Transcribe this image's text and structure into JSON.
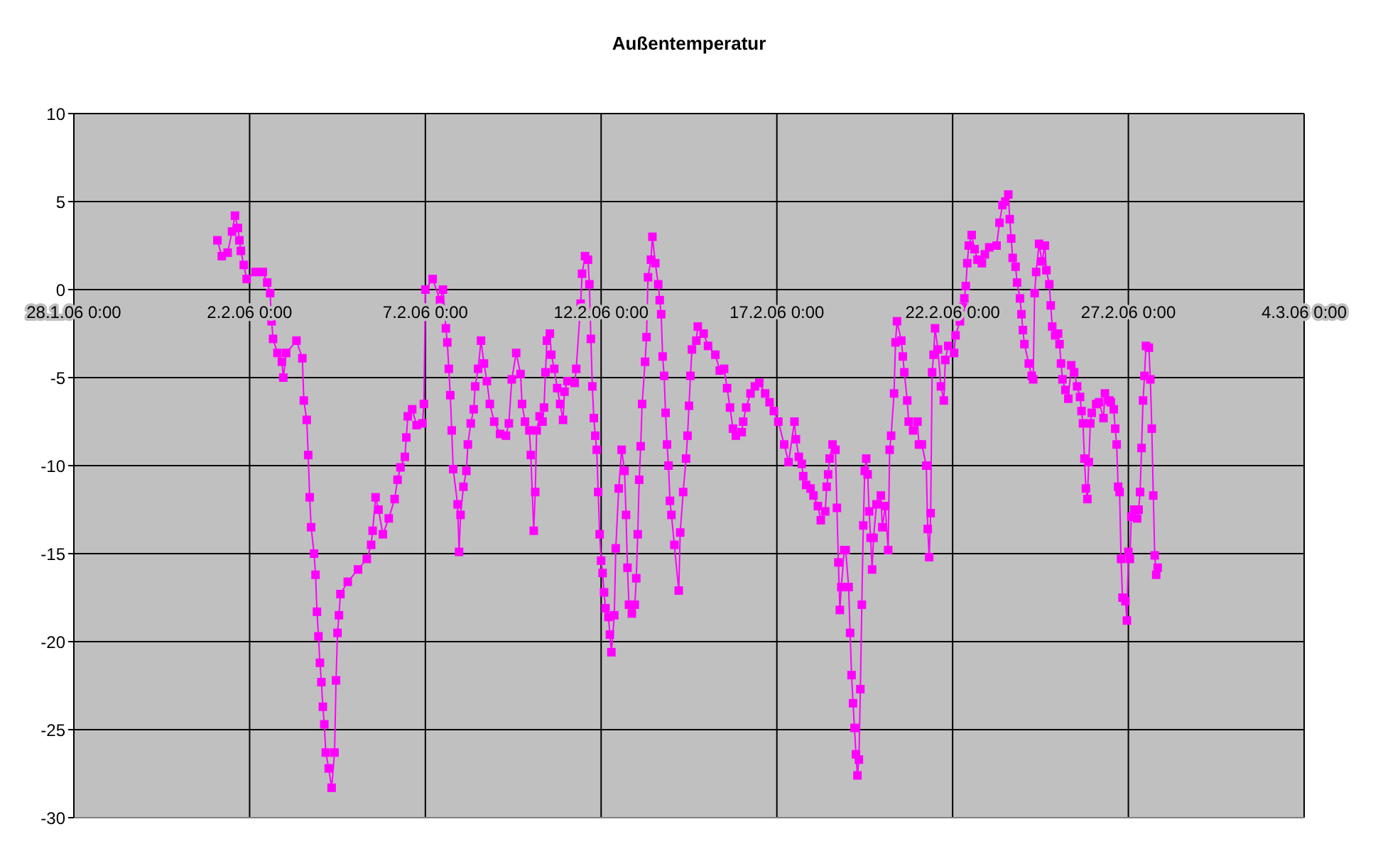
{
  "chart_data": {
    "type": "line",
    "title": "Außentemperatur",
    "x": [
      "--02-01T02:00",
      "--02-01T05:00",
      "--02-01T09:00",
      "--02-01T12:00",
      "--02-01T14:00",
      "--02-01T16:00",
      "--02-01T17:00",
      "--02-01T18:00",
      "--02-01T20:00",
      "--02-01T22:00",
      "--02-02T04:00",
      "--02-02T09:00",
      "--02-02T12:00",
      "--02-02T14:00",
      "--02-02T15:00",
      "--02-02T16:00",
      "--02-02T19:00",
      "--02-02T22:00",
      "--02-02T23:00",
      "--02-03T01:00",
      "--02-03T08:00",
      "--02-03T12:00",
      "--02-03T13:00",
      "--02-03T15:00",
      "--02-03T16:00",
      "--02-03T17:00",
      "--02-03T18:00",
      "--02-03T20:00",
      "--02-03T21:00",
      "--02-03T22:00",
      "--02-03T23:00",
      "--02-04T00:00",
      "--02-04T01:00",
      "--02-04T02:00",
      "--02-04T03:00",
      "--02-04T04:00",
      "--02-04T06:00",
      "--02-04T08:00",
      "--02-04T10:00",
      "--02-04T11:00",
      "--02-04T12:00",
      "--02-04T13:00",
      "--02-04T14:00",
      "--02-04T19:00",
      "--02-05T02:00",
      "--02-05T08:00",
      "--02-05T11:00",
      "--02-05T12:00",
      "--02-05T14:00",
      "--02-05T16:00",
      "--02-05T19:00",
      "--02-05T23:00",
      "--02-06T03:00",
      "--02-06T05:00",
      "--02-06T07:00",
      "--02-06T10:00",
      "--02-06T11:00",
      "--02-06T12:00",
      "--02-06T15:00",
      "--02-06T18:00",
      "--02-06T22:00",
      "--02-06T23:00",
      "--02-07T00:00",
      "--02-07T05:00",
      "--02-07T10:00",
      "--02-07T12:00",
      "--02-07T14:00",
      "--02-07T15:00",
      "--02-07T16:00",
      "--02-07T17:00",
      "--02-07T18:00",
      "--02-07T19:00",
      "--02-07T22:00",
      "--02-07T23:00",
      "--02-08T00:00",
      "--02-08T02:00",
      "--02-08T04:00",
      "--02-08T05:00",
      "--02-08T07:00",
      "--02-08T09:00",
      "--02-08T10:00",
      "--02-08T12:00",
      "--02-08T14:00",
      "--02-08T16:00",
      "--02-08T18:00",
      "--02-08T20:00",
      "--02-08T23:00",
      "--02-09T03:00",
      "--02-09T07:00",
      "--02-09T09:00",
      "--02-09T11:00",
      "--02-09T14:00",
      "--02-09T17:00",
      "--02-09T18:00",
      "--02-09T20:00",
      "--02-09T23:00",
      "--02-10T00:00",
      "--02-10T02:00",
      "--02-10T03:00",
      "--02-10T04:00",
      "--02-10T06:00",
      "--02-10T08:00",
      "--02-10T09:00",
      "--02-10T10:00",
      "--02-10T11:00",
      "--02-10T13:00",
      "--02-10T14:00",
      "--02-10T16:00",
      "--02-10T18:00",
      "--02-10T20:00",
      "--02-10T22:00",
      "--02-10T23:00",
      "--02-11T01:00",
      "--02-11T06:00",
      "--02-11T07:00",
      "--02-11T10:00",
      "--02-11T11:00",
      "--02-11T13:00",
      "--02-11T15:00",
      "--02-11T16:00",
      "--02-11T17:00",
      "--02-11T18:00",
      "--02-11T19:00",
      "--02-11T20:00",
      "--02-11T21:00",
      "--02-11T22:00",
      "--02-11T23:00",
      "--02-12T00:00",
      "--02-12T01:00",
      "--02-12T02:00",
      "--02-12T03:00",
      "--02-12T05:00",
      "--02-12T06:00",
      "--02-12T07:00",
      "--02-12T09:00",
      "--02-12T10:00",
      "--02-12T12:00",
      "--02-12T14:00",
      "--02-12T16:00",
      "--02-12T17:00",
      "--02-12T18:00",
      "--02-12T19:00",
      "--02-12T21:00",
      "--02-12T23:00",
      "--02-13T00:00",
      "--02-13T01:00",
      "--02-13T02:00",
      "--02-13T03:00",
      "--02-13T04:00",
      "--02-13T06:00",
      "--02-13T07:00",
      "--02-13T08:00",
      "--02-13T10:00",
      "--02-13T11:00",
      "--02-13T13:00",
      "--02-13T15:00",
      "--02-13T16:00",
      "--02-13T17:00",
      "--02-13T18:00",
      "--02-13T19:00",
      "--02-13T20:00",
      "--02-13T21:00",
      "--02-13T22:00",
      "--02-13T23:00",
      "--02-14T00:00",
      "--02-14T02:00",
      "--02-14T05:00",
      "--02-14T06:00",
      "--02-14T08:00",
      "--02-14T10:00",
      "--02-14T11:00",
      "--02-14T12:00",
      "--02-14T13:00",
      "--02-14T14:00",
      "--02-14T17:00",
      "--02-14T18:00",
      "--02-14T22:00",
      "--02-15T01:00",
      "--02-15T06:00",
      "--02-15T09:00",
      "--02-15T12:00",
      "--02-15T14:00",
      "--02-15T16:00",
      "--02-15T18:00",
      "--02-15T20:00",
      "--02-16T00:00",
      "--02-16T01:00",
      "--02-16T03:00",
      "--02-16T06:00",
      "--02-16T09:00",
      "--02-16T12:00",
      "--02-16T16:00",
      "--02-16T19:00",
      "--02-16T22:00",
      "--02-17T01:00",
      "--02-17T05:00",
      "--02-17T08:00",
      "--02-17T12:00",
      "--02-17T13:00",
      "--02-17T15:00",
      "--02-17T17:00",
      "--02-17T18:00",
      "--02-17T20:00",
      "--02-17T23:00",
      "--02-18T01:00",
      "--02-18T04:00",
      "--02-18T06:00",
      "--02-18T09:00",
      "--02-18T10:00",
      "--02-18T11:00",
      "--02-18T12:00",
      "--02-18T14:00",
      "--02-18T16:00",
      "--02-18T17:00",
      "--02-18T18:00",
      "--02-18T19:00",
      "--02-18T20:00",
      "--02-18T22:00",
      "--02-18T23:00",
      "--02-19T01:00",
      "--02-19T02:00",
      "--02-19T03:00",
      "--02-19T04:00",
      "--02-19T05:00",
      "--02-19T06:00",
      "--02-19T07:00",
      "--02-19T08:00",
      "--02-19T09:00",
      "--02-19T10:00",
      "--02-19T11:00",
      "--02-19T12:00",
      "--02-19T13:00",
      "--02-19T14:00",
      "--02-19T15:00",
      "--02-19T16:00",
      "--02-19T17:00",
      "--02-19T18:00",
      "--02-19T20:00",
      "--02-19T23:00",
      "--02-20T00:00",
      "--02-20T02:00",
      "--02-20T04:00",
      "--02-20T05:00",
      "--02-20T06:00",
      "--02-20T08:00",
      "--02-20T09:00",
      "--02-20T10:00",
      "--02-20T13:00",
      "--02-20T14:00",
      "--02-20T15:00",
      "--02-20T17:00",
      "--02-20T18:00",
      "--02-20T21:00",
      "--02-21T00:00",
      "--02-21T01:00",
      "--02-21T03:00",
      "--02-21T06:00",
      "--02-21T07:00",
      "--02-21T08:00",
      "--02-21T09:00",
      "--02-21T10:00",
      "--02-21T11:00",
      "--02-21T12:00",
      "--02-21T14:00",
      "--02-21T16:00",
      "--02-21T18:00",
      "--02-21T19:00",
      "--02-21T21:00",
      "--02-22T01:00",
      "--02-22T02:00",
      "--02-22T05:00",
      "--02-22T07:00",
      "--02-22T08:00",
      "--02-22T09:00",
      "--02-22T10:00",
      "--02-22T11:00",
      "--02-22T13:00",
      "--02-22T15:00",
      "--02-22T17:00",
      "--02-22T20:00",
      "--02-22T22:00",
      "--02-23T01:00",
      "--02-23T06:00",
      "--02-23T08:00",
      "--02-23T10:00",
      "--02-23T12:00",
      "--02-23T14:00",
      "--02-23T15:00",
      "--02-23T16:00",
      "--02-23T17:00",
      "--02-23T19:00",
      "--02-23T20:00",
      "--02-23T22:00",
      "--02-23T23:00",
      "--02-24T00:00",
      "--02-24T01:00",
      "--02-24T04:00",
      "--02-24T06:00",
      "--02-24T07:00",
      "--02-24T08:00",
      "--02-24T09:00",
      "--02-24T11:00",
      "--02-24T13:00",
      "--02-24T15:00",
      "--02-24T16:00",
      "--02-24T18:00",
      "--02-24T19:00",
      "--02-24T20:00",
      "--02-24T22:00",
      "--02-25T00:00",
      "--02-25T01:00",
      "--02-25T02:00",
      "--02-25T03:00",
      "--02-25T05:00",
      "--02-25T07:00",
      "--02-25T09:00",
      "--02-25T11:00",
      "--02-25T13:00",
      "--02-25T15:00",
      "--02-25T16:00",
      "--02-25T17:00",
      "--02-25T18:00",
      "--02-25T19:00",
      "--02-25T20:00",
      "--02-25T21:00",
      "--02-25T22:00",
      "--02-25T23:00",
      "--02-26T02:00",
      "--02-26T04:00",
      "--02-26T07:00",
      "--02-26T08:00",
      "--02-26T11:00",
      "--02-26T12:00",
      "--02-26T14:00",
      "--02-26T15:00",
      "--02-26T16:00",
      "--02-26T17:00",
      "--02-26T18:00",
      "--02-26T19:00",
      "--02-26T20:00",
      "--02-26T22:00",
      "--02-26T23:00",
      "--02-27T00:00",
      "--02-27T01:00",
      "--02-27T02:00",
      "--02-27T04:00",
      "--02-27T06:00",
      "--02-27T07:00",
      "--02-27T08:00",
      "--02-27T09:00",
      "--02-27T10:00",
      "--02-27T11:00",
      "--02-27T12:00",
      "--02-27T14:00",
      "--02-27T15:00",
      "--02-27T16:00",
      "--02-27T17:00",
      "--02-27T18:00",
      "--02-27T19:00",
      "--02-27T20:00"
    ],
    "series": [
      {
        "color": "#ff00ff",
        "values": [
          2.8,
          1.9,
          2.1,
          3.3,
          4.2,
          3.5,
          2.8,
          2.2,
          1.4,
          0.6,
          1.0,
          1.0,
          0.4,
          -0.2,
          -1.8,
          -2.8,
          -3.6,
          -4.1,
          -5.0,
          -3.6,
          -2.9,
          -3.9,
          -6.3,
          -7.4,
          -9.4,
          -11.8,
          -13.5,
          -15.0,
          -16.2,
          -18.3,
          -19.7,
          -21.2,
          -22.3,
          -23.7,
          -24.7,
          -26.3,
          -27.2,
          -28.3,
          -26.3,
          -22.2,
          -19.5,
          -18.5,
          -17.3,
          -16.6,
          -15.9,
          -15.3,
          -14.5,
          -13.7,
          -11.8,
          -12.5,
          -13.9,
          -13.0,
          -11.9,
          -10.8,
          -10.1,
          -9.5,
          -8.4,
          -7.2,
          -6.8,
          -7.7,
          -7.6,
          -6.5,
          0.0,
          0.6,
          -0.6,
          0.0,
          -2.2,
          -3.0,
          -4.5,
          -6.0,
          -8.0,
          -10.2,
          -12.2,
          -14.9,
          -12.8,
          -11.2,
          -10.3,
          -8.8,
          -7.6,
          -6.8,
          -5.5,
          -4.5,
          -2.9,
          -4.2,
          -5.2,
          -6.5,
          -7.5,
          -8.2,
          -8.3,
          -7.6,
          -5.1,
          -3.6,
          -4.8,
          -6.5,
          -7.5,
          -8.0,
          -9.4,
          -13.7,
          -11.5,
          -8.0,
          -7.2,
          -7.5,
          -6.7,
          -4.7,
          -2.9,
          -2.5,
          -3.7,
          -4.5,
          -5.6,
          -6.5,
          -7.4,
          -5.8,
          -5.2,
          -5.3,
          -4.5,
          -0.8,
          0.9,
          1.9,
          1.7,
          0.3,
          -2.8,
          -5.5,
          -7.3,
          -8.3,
          -9.1,
          -11.5,
          -13.9,
          -15.4,
          -16.1,
          -17.2,
          -18.1,
          -18.6,
          -19.6,
          -20.6,
          -18.5,
          -14.7,
          -11.3,
          -9.1,
          -10.3,
          -12.8,
          -15.8,
          -17.9,
          -18.4,
          -17.9,
          -16.4,
          -13.9,
          -10.8,
          -8.9,
          -6.5,
          -4.1,
          -2.7,
          0.7,
          1.7,
          3.0,
          1.5,
          0.3,
          -0.6,
          -1.4,
          -3.8,
          -4.9,
          -7.0,
          -8.8,
          -10.0,
          -12.0,
          -12.8,
          -14.5,
          -17.1,
          -13.8,
          -11.5,
          -9.6,
          -8.3,
          -6.6,
          -4.9,
          -3.4,
          -2.9,
          -2.1,
          -2.5,
          -3.2,
          -3.7,
          -4.6,
          -4.5,
          -5.6,
          -6.7,
          -7.9,
          -8.3,
          -8.1,
          -7.5,
          -6.7,
          -5.9,
          -5.5,
          -5.3,
          -5.9,
          -6.4,
          -6.9,
          -7.5,
          -8.8,
          -9.8,
          -7.5,
          -8.5,
          -9.5,
          -9.9,
          -10.6,
          -11.1,
          -11.3,
          -11.7,
          -12.3,
          -13.1,
          -12.6,
          -11.2,
          -10.5,
          -9.6,
          -8.8,
          -9.1,
          -12.4,
          -15.5,
          -18.2,
          -16.9,
          -14.8,
          -14.8,
          -16.9,
          -19.5,
          -21.9,
          -23.5,
          -24.9,
          -26.4,
          -27.6,
          -26.7,
          -22.7,
          -17.9,
          -13.4,
          -10.3,
          -9.6,
          -10.5,
          -12.6,
          -14.1,
          -15.9,
          -14.1,
          -12.2,
          -11.7,
          -13.5,
          -12.3,
          -14.8,
          -9.1,
          -8.3,
          -5.9,
          -3.0,
          -1.8,
          -2.9,
          -3.8,
          -4.7,
          -6.3,
          -7.5,
          -8.0,
          -7.5,
          -8.8,
          -8.8,
          -10.0,
          -13.6,
          -15.2,
          -12.7,
          -4.7,
          -3.7,
          -2.2,
          -3.4,
          -5.5,
          -6.3,
          -4.0,
          -3.2,
          -3.6,
          -2.6,
          -1.8,
          -1.0,
          -0.5,
          0.2,
          1.5,
          2.5,
          3.1,
          2.3,
          1.7,
          1.5,
          2.0,
          2.4,
          2.5,
          3.8,
          4.8,
          5.0,
          5.4,
          4.0,
          2.9,
          1.8,
          1.3,
          0.4,
          -0.5,
          -1.4,
          -2.3,
          -3.1,
          -4.2,
          -4.9,
          -5.1,
          -0.2,
          1.0,
          2.6,
          1.6,
          2.5,
          1.1,
          0.3,
          -0.9,
          -2.1,
          -2.6,
          -2.5,
          -3.1,
          -4.2,
          -5.1,
          -5.7,
          -6.2,
          -4.3,
          -4.7,
          -5.5,
          -6.1,
          -6.9,
          -7.6,
          -9.6,
          -11.3,
          -11.9,
          -9.8,
          -7.6,
          -7.0,
          -6.5,
          -6.4,
          -7.3,
          -5.9,
          -6.3,
          -6.4,
          -6.8,
          -7.9,
          -8.8,
          -11.2,
          -11.5,
          -15.3,
          -17.5,
          -17.7,
          -18.8,
          -14.9,
          -15.3,
          -12.9,
          -12.5,
          -13.0,
          -12.5,
          -11.5,
          -9.0,
          -6.3,
          -4.9,
          -3.2,
          -3.3,
          -5.1,
          -7.9,
          -11.7,
          -15.1,
          -16.2,
          -15.8
        ]
      }
    ],
    "xlim": [
      "--01-28T00:00",
      "--03-04T00:00"
    ],
    "xticks": [
      {
        "value": "--01-28T00:00",
        "label": "28.1.06 0:00"
      },
      {
        "value": "--02-02T00:00",
        "label": "2.2.06 0:00"
      },
      {
        "value": "--02-07T00:00",
        "label": "7.2.06 0:00"
      },
      {
        "value": "--02-12T00:00",
        "label": "12.2.06 0:00"
      },
      {
        "value": "--02-17T00:00",
        "label": "17.2.06 0:00"
      },
      {
        "value": "--02-22T00:00",
        "label": "22.2.06 0:00"
      },
      {
        "value": "--02-27T00:00",
        "label": "27.2.06 0:00"
      },
      {
        "value": "--03-04T00:00",
        "label": "4.3.06 0:00"
      }
    ],
    "ylim": [
      -30,
      10
    ],
    "yticks": [
      -30,
      -25,
      -20,
      -15,
      -10,
      -5,
      0,
      5,
      10
    ],
    "grid": true,
    "marker": "square",
    "line_style": "solid",
    "legend": false
  }
}
